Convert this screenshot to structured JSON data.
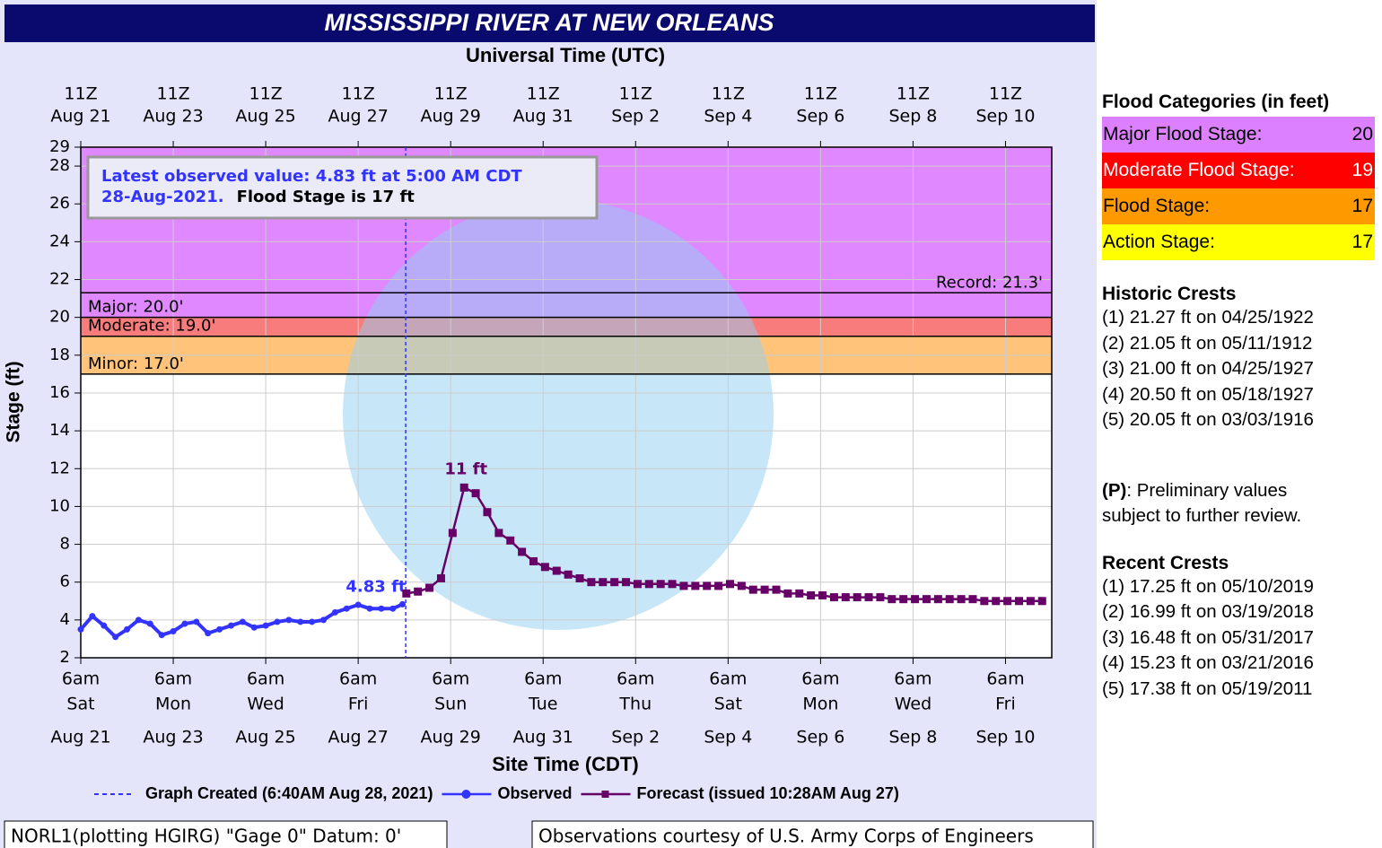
{
  "chart_data": {
    "type": "line",
    "title": "MISSISSIPPI RIVER AT NEW ORLEANS",
    "top_axis_title": "Universal Time (UTC)",
    "x_axis_title": "Site Time (CDT)",
    "y_axis_title": "Stage (ft)",
    "xlim": [
      "Aug 21 06:00",
      "Sep 11 06:00"
    ],
    "ylim": [
      2,
      29
    ],
    "yticks": [
      2,
      4,
      6,
      8,
      10,
      12,
      14,
      16,
      18,
      20,
      22,
      24,
      26,
      28,
      29
    ],
    "grid": true,
    "xticks": [
      {
        "value": "Aug 21 06:00",
        "label": [
          "6am",
          "Sat",
          "Aug 21"
        ]
      },
      {
        "value": "Aug 23 06:00",
        "label": [
          "6am",
          "Mon",
          "Aug 23"
        ]
      },
      {
        "value": "Aug 25 06:00",
        "label": [
          "6am",
          "Wed",
          "Aug 25"
        ]
      },
      {
        "value": "Aug 27 06:00",
        "label": [
          "6am",
          "Fri",
          "Aug 27"
        ]
      },
      {
        "value": "Aug 29 06:00",
        "label": [
          "6am",
          "Sun",
          "Aug 29"
        ]
      },
      {
        "value": "Aug 31 06:00",
        "label": [
          "6am",
          "Tue",
          "Aug 31"
        ]
      },
      {
        "value": "Sep 2 06:00",
        "label": [
          "6am",
          "Thu",
          "Sep 2"
        ]
      },
      {
        "value": "Sep 4 06:00",
        "label": [
          "6am",
          "Sat",
          "Sep 4"
        ]
      },
      {
        "value": "Sep 6 06:00",
        "label": [
          "6am",
          "Mon",
          "Sep 6"
        ]
      },
      {
        "value": "Sep 8 06:00",
        "label": [
          "6am",
          "Wed",
          "Sep 8"
        ]
      },
      {
        "value": "Sep 10 06:00",
        "label": [
          "6am",
          "Fri",
          "Sep 10"
        ]
      }
    ],
    "x2ticks": [
      {
        "value": "Aug 21 06:00",
        "label": [
          "11Z",
          "Aug 21"
        ]
      },
      {
        "value": "Aug 23 06:00",
        "label": [
          "11Z",
          "Aug 23"
        ]
      },
      {
        "value": "Aug 25 06:00",
        "label": [
          "11Z",
          "Aug 25"
        ]
      },
      {
        "value": "Aug 27 06:00",
        "label": [
          "11Z",
          "Aug 27"
        ]
      },
      {
        "value": "Aug 29 06:00",
        "label": [
          "11Z",
          "Aug 29"
        ]
      },
      {
        "value": "Aug 31 06:00",
        "label": [
          "11Z",
          "Aug 31"
        ]
      },
      {
        "value": "Sep 2 06:00",
        "label": [
          "11Z",
          "Sep 2"
        ]
      },
      {
        "value": "Sep 4 06:00",
        "label": [
          "11Z",
          "Sep 4"
        ]
      },
      {
        "value": "Sep 6 06:00",
        "label": [
          "11Z",
          "Sep 6"
        ]
      },
      {
        "value": "Sep 8 06:00",
        "label": [
          "11Z",
          "Sep 8"
        ]
      },
      {
        "value": "Sep 10 06:00",
        "label": [
          "11Z",
          "Sep 10"
        ]
      }
    ],
    "flood_levels": [
      {
        "label": "Record: 21.3'",
        "value": 21.3
      },
      {
        "label": "Major: 20.0'",
        "value": 20,
        "color": "#e088ff"
      },
      {
        "label": "Moderate: 19.0'",
        "value": 19,
        "color": "#f87c7c"
      },
      {
        "label": "Minor: 17.0'",
        "value": 17,
        "color": "#ffc47a"
      }
    ],
    "created": {
      "x": "Aug 28 06:40",
      "label": "Graph Created (6:40AM Aug 28, 2021)",
      "color": "#3333ff"
    },
    "info_box": {
      "line1": "Latest observed value: 4.83 ft at 5:00 AM CDT",
      "line2": "28-Aug-2021.",
      "flood_stage": "Flood Stage is 17 ft"
    },
    "series": [
      {
        "name": "Observed",
        "color": "#3333ff",
        "x": [
          "Aug 21 06:00",
          "Aug 21 12:00",
          "Aug 21 18:00",
          "Aug 22 00:00",
          "Aug 22 06:00",
          "Aug 22 12:00",
          "Aug 22 18:00",
          "Aug 23 00:00",
          "Aug 23 06:00",
          "Aug 23 12:00",
          "Aug 23 18:00",
          "Aug 24 00:00",
          "Aug 24 06:00",
          "Aug 24 12:00",
          "Aug 24 18:00",
          "Aug 25 00:00",
          "Aug 25 06:00",
          "Aug 25 12:00",
          "Aug 25 18:00",
          "Aug 26 00:00",
          "Aug 26 06:00",
          "Aug 26 12:00",
          "Aug 26 18:00",
          "Aug 27 00:00",
          "Aug 27 06:00",
          "Aug 27 12:00",
          "Aug 27 18:00",
          "Aug 28 00:00",
          "Aug 28 05:00"
        ],
        "values": [
          3.5,
          4.2,
          3.7,
          3.1,
          3.5,
          4.0,
          3.8,
          3.2,
          3.4,
          3.8,
          3.9,
          3.3,
          3.5,
          3.7,
          3.9,
          3.6,
          3.7,
          3.9,
          4.0,
          3.9,
          3.9,
          4.0,
          4.4,
          4.6,
          4.8,
          4.6,
          4.6,
          4.6,
          4.83
        ],
        "value_labels": [
          null,
          null,
          null,
          null,
          null,
          null,
          null,
          null,
          null,
          null,
          null,
          null,
          null,
          null,
          null,
          null,
          null,
          null,
          null,
          null,
          null,
          null,
          null,
          null,
          null,
          null,
          null,
          null,
          "4.83 ft"
        ]
      },
      {
        "name": "Forecast (issued 10:28AM Aug 27)",
        "color": "#660066",
        "x": [
          "Aug 28 07:00",
          "Aug 28 13:00",
          "Aug 28 19:00",
          "Aug 29 01:00",
          "Aug 29 07:00",
          "Aug 29 13:00",
          "Aug 29 19:00",
          "Aug 30 01:00",
          "Aug 30 07:00",
          "Aug 30 13:00",
          "Aug 30 19:00",
          "Aug 31 01:00",
          "Aug 31 07:00",
          "Aug 31 13:00",
          "Aug 31 19:00",
          "Sep 1 01:00",
          "Sep 1 07:00",
          "Sep 1 13:00",
          "Sep 1 19:00",
          "Sep 2 01:00",
          "Sep 2 07:00",
          "Sep 2 13:00",
          "Sep 2 19:00",
          "Sep 3 01:00",
          "Sep 3 07:00",
          "Sep 3 13:00",
          "Sep 3 19:00",
          "Sep 4 01:00",
          "Sep 4 07:00",
          "Sep 4 13:00",
          "Sep 4 19:00",
          "Sep 5 01:00",
          "Sep 5 07:00",
          "Sep 5 13:00",
          "Sep 5 19:00",
          "Sep 6 01:00",
          "Sep 6 07:00",
          "Sep 6 13:00",
          "Sep 6 19:00",
          "Sep 7 01:00",
          "Sep 7 07:00",
          "Sep 7 13:00",
          "Sep 7 19:00",
          "Sep 8 01:00",
          "Sep 8 07:00",
          "Sep 8 13:00",
          "Sep 8 19:00",
          "Sep 9 01:00",
          "Sep 9 07:00",
          "Sep 9 13:00",
          "Sep 9 19:00",
          "Sep 10 01:00",
          "Sep 10 07:00",
          "Sep 10 13:00",
          "Sep 10 19:00",
          "Sep 11 01:00"
        ],
        "values": [
          5.4,
          5.5,
          5.7,
          6.2,
          8.6,
          11.0,
          10.7,
          9.7,
          8.6,
          8.2,
          7.6,
          7.1,
          6.8,
          6.6,
          6.4,
          6.2,
          6.0,
          6.0,
          6.0,
          6.0,
          5.9,
          5.9,
          5.9,
          5.9,
          5.8,
          5.8,
          5.8,
          5.8,
          5.9,
          5.8,
          5.6,
          5.6,
          5.6,
          5.4,
          5.4,
          5.3,
          5.3,
          5.2,
          5.2,
          5.2,
          5.2,
          5.2,
          5.1,
          5.1,
          5.1,
          5.1,
          5.1,
          5.1,
          5.1,
          5.1,
          5.0,
          5.0,
          5.0,
          5.0,
          5.0,
          5.0
        ],
        "value_labels": [
          null,
          null,
          null,
          null,
          null,
          "11 ft",
          null,
          null,
          null,
          null,
          null,
          null,
          null,
          null,
          null,
          null,
          null,
          null,
          null,
          null,
          null,
          null,
          null,
          null,
          null,
          null,
          null,
          null,
          null,
          null,
          null,
          null,
          null,
          null,
          null,
          null,
          null,
          null,
          null,
          null,
          null,
          null,
          null,
          null,
          null,
          null,
          null,
          null,
          null,
          null,
          null,
          null,
          null,
          null,
          null,
          null
        ]
      }
    ],
    "footer_left": "NORL1(plotting HGIRG) \"Gage 0\" Datum: 0'",
    "footer_right": "Observations courtesy of U.S. Army Corps of Engineers"
  },
  "sidebar": {
    "flood_categories": {
      "title": "Flood Categories (in feet)",
      "rows": [
        {
          "label": "Major Flood Stage:",
          "value": 20,
          "color": "#dd80ff",
          "text_color": "#000000"
        },
        {
          "label": "Moderate Flood Stage:",
          "value": 19,
          "color": "#ff0000",
          "text_color": "#ffffff"
        },
        {
          "label": "Flood Stage:",
          "value": 17,
          "color": "#ff9900",
          "text_color": "#000000"
        },
        {
          "label": "Action Stage:",
          "value": 17,
          "color": "#ffff00",
          "text_color": "#000000"
        }
      ]
    },
    "historic_crests": {
      "title": "Historic Crests",
      "items": [
        "(1) 21.27 ft on 04/25/1922",
        "(2) 21.05 ft on 05/11/1912",
        "(3) 21.00 ft on 04/25/1927",
        "(4) 20.50 ft on 05/18/1927",
        "(5) 20.05 ft on 03/03/1916"
      ]
    },
    "note": {
      "key": "(P)",
      "text": ": Preliminary values subject to further review."
    },
    "recent_crests": {
      "title": "Recent Crests",
      "items": [
        "(1) 17.25 ft on 05/10/2019",
        "(2) 16.99 ft on 03/19/2018",
        "(3) 16.48 ft on 05/31/2017",
        "(4) 15.23 ft on 03/21/2016",
        "(5) 17.38 ft on 05/19/2011"
      ]
    }
  }
}
